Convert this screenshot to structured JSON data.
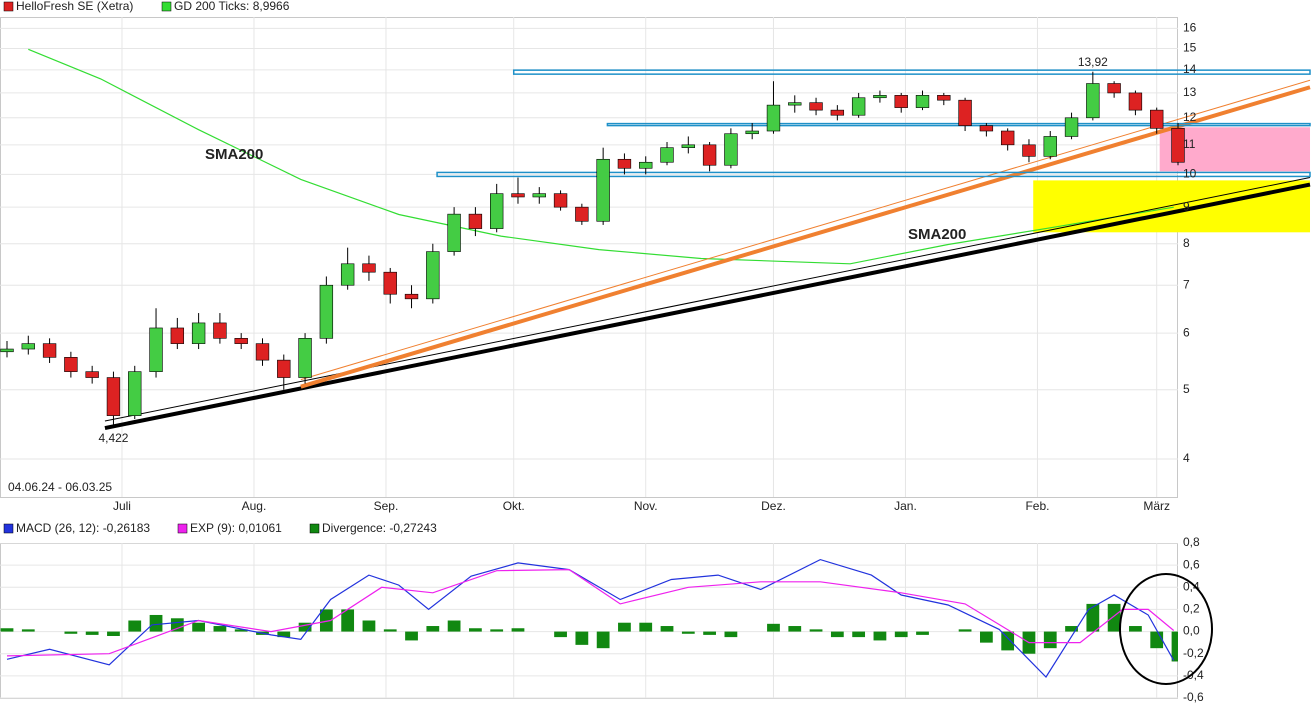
{
  "chart_data": [
    {
      "type": "candlestick",
      "name": "HelloFresh SE (Xetra)",
      "subtitle": "04.06.24 - 06.03.25",
      "up_color": "#44cc44",
      "down_color": "#dd2222",
      "log_scale": true,
      "grid": true,
      "xlim": [
        0,
        275
      ],
      "ylim": [
        3.54,
        16.6
      ],
      "xticks": [
        {
          "value": 27,
          "label": "Juli"
        },
        {
          "value": 58,
          "label": "Aug."
        },
        {
          "value": 89,
          "label": "Sep."
        },
        {
          "value": 119,
          "label": "Okt."
        },
        {
          "value": 150,
          "label": "Nov."
        },
        {
          "value": 180,
          "label": "Dez."
        },
        {
          "value": 211,
          "label": "Jan."
        },
        {
          "value": 242,
          "label": "Feb."
        },
        {
          "value": 270,
          "label": "März"
        }
      ],
      "yticks": [
        4,
        5,
        6,
        7,
        8,
        9,
        10,
        11,
        12,
        13,
        14,
        15,
        16
      ],
      "x": [
        0,
        5,
        10,
        15,
        20,
        25,
        30,
        35,
        40,
        45,
        50,
        55,
        60,
        65,
        70,
        75,
        80,
        85,
        90,
        95,
        100,
        105,
        110,
        115,
        120,
        125,
        130,
        135,
        140,
        145,
        150,
        155,
        160,
        165,
        170,
        175,
        180,
        185,
        190,
        195,
        200,
        205,
        210,
        215,
        220,
        225,
        230,
        235,
        240,
        245,
        250,
        255,
        260,
        265,
        270,
        275
      ],
      "open": [
        5.65,
        5.7,
        5.8,
        5.55,
        5.3,
        5.2,
        4.6,
        5.3,
        6.1,
        5.8,
        6.2,
        5.9,
        5.8,
        5.5,
        5.2,
        5.9,
        7.0,
        7.5,
        7.3,
        6.8,
        6.7,
        7.8,
        8.8,
        8.4,
        9.4,
        9.3,
        9.4,
        9.0,
        8.6,
        10.5,
        10.2,
        10.4,
        10.9,
        11.0,
        10.3,
        11.4,
        11.5,
        12.5,
        12.6,
        12.3,
        12.1,
        12.8,
        12.9,
        12.4,
        12.9,
        12.7,
        11.7,
        11.5,
        11.0,
        10.6,
        11.3,
        12.0,
        13.4,
        13.0,
        12.3,
        11.6
      ],
      "high": [
        5.85,
        5.95,
        5.9,
        5.65,
        5.4,
        5.3,
        5.4,
        6.5,
        6.3,
        6.4,
        6.4,
        6.0,
        5.9,
        5.6,
        6.0,
        7.2,
        7.9,
        7.7,
        7.4,
        7.0,
        8.0,
        9.0,
        9.0,
        9.7,
        9.9,
        9.6,
        9.5,
        9.1,
        10.9,
        10.7,
        10.6,
        11.1,
        11.3,
        11.1,
        11.6,
        11.8,
        13.5,
        12.9,
        12.8,
        12.5,
        13.0,
        13.1,
        13.0,
        13.1,
        13.0,
        12.8,
        11.8,
        11.6,
        11.2,
        11.5,
        12.2,
        13.92,
        13.5,
        13.1,
        12.4,
        11.8
      ],
      "low": [
        5.55,
        5.6,
        5.45,
        5.2,
        5.1,
        4.422,
        4.55,
        5.2,
        5.7,
        5.7,
        5.8,
        5.7,
        5.4,
        5.0,
        5.1,
        5.8,
        6.9,
        7.1,
        6.6,
        6.5,
        6.6,
        7.7,
        8.2,
        8.3,
        9.1,
        9.1,
        8.9,
        8.5,
        8.5,
        10.0,
        10.0,
        10.3,
        10.7,
        10.1,
        10.2,
        11.2,
        11.4,
        12.2,
        12.1,
        11.9,
        12.0,
        12.6,
        12.2,
        12.3,
        12.5,
        11.5,
        11.3,
        10.8,
        10.4,
        10.5,
        11.2,
        11.9,
        12.8,
        12.1,
        11.4,
        10.3
      ],
      "close": [
        5.7,
        5.8,
        5.55,
        5.3,
        5.2,
        4.6,
        5.3,
        6.1,
        5.8,
        6.2,
        5.9,
        5.8,
        5.5,
        5.2,
        5.9,
        7.0,
        7.5,
        7.3,
        6.8,
        6.7,
        7.8,
        8.8,
        8.4,
        9.4,
        9.3,
        9.4,
        9.0,
        8.6,
        10.5,
        10.2,
        10.4,
        10.9,
        11.0,
        10.3,
        11.4,
        11.5,
        12.5,
        12.6,
        12.3,
        12.1,
        12.8,
        12.9,
        12.4,
        12.9,
        12.7,
        11.7,
        11.5,
        11.0,
        10.6,
        11.3,
        12.0,
        13.4,
        13.0,
        12.3,
        11.6,
        10.4
      ],
      "extreme_labels": [
        {
          "value": 13.92,
          "label": "13,92"
        },
        {
          "value": 4.422,
          "label": "4,422"
        }
      ],
      "lines": [
        {
          "name": "GD 200 Ticks: 8,9966",
          "color": "#33dd33",
          "x": [
            5,
            22,
            45,
            69,
            92,
            116,
            139,
            163,
            198,
            221,
            245,
            274
          ],
          "values": [
            14.96,
            13.6,
            11.55,
            9.84,
            8.79,
            8.2,
            7.85,
            7.63,
            7.5,
            7.98,
            8.42,
            9.0
          ]
        }
      ],
      "annotations": [
        "SMA200",
        "SMA200"
      ],
      "annotation_color": "#22bb22",
      "zones": [
        {
          "x": [
            270.7,
            306
          ],
          "range": [
            10.1,
            11.64
          ],
          "color": "#ffaacc"
        },
        {
          "x": [
            241,
            306
          ],
          "range": [
            8.3,
            9.81
          ],
          "color": "#ffff00"
        }
      ],
      "levels": [
        {
          "x": [
            119,
            306
          ],
          "value": 13.9,
          "color": "#1e90c8",
          "width": 4
        },
        {
          "x": [
            141,
            306
          ],
          "value": 11.74,
          "color": "#1e90c8",
          "width": 2
        },
        {
          "x": [
            101,
            306
          ],
          "value": 10.0,
          "color": "#1e90c8",
          "width": 4
        }
      ],
      "trendlines": [
        {
          "x": [
            23,
            306
          ],
          "values": [
            4.42,
            9.68
          ],
          "color": "#000000",
          "width": 4
        },
        {
          "x": [
            69,
            306
          ],
          "values": [
            5.05,
            13.24
          ],
          "color": "#f08030",
          "width": 4
        }
      ]
    },
    {
      "type": "macd",
      "xlim": [
        0,
        275
      ],
      "ylim": [
        -0.6,
        0.8
      ],
      "grid": true,
      "yticks": [
        {
          "value": 0.8,
          "label": "0,8"
        },
        {
          "value": 0.6,
          "label": "0,6"
        },
        {
          "value": 0.4,
          "label": "0,4"
        },
        {
          "value": 0.2,
          "label": "0,2"
        },
        {
          "value": 0,
          "label": "0,0"
        },
        {
          "value": -0.2,
          "label": "-0,2"
        },
        {
          "value": -0.4,
          "label": "-0,4"
        },
        {
          "value": -0.6,
          "label": "-0,6"
        }
      ],
      "series": [
        {
          "name": "MACD (26, 12): -0,26183",
          "color": "#2233dd",
          "type": "line",
          "x": [
            0,
            10,
            24,
            34,
            45,
            62,
            69,
            76,
            85,
            92,
            99,
            109,
            120,
            132,
            144,
            156,
            167,
            177,
            191,
            203,
            210,
            221,
            233,
            244,
            254,
            260,
            268,
            274
          ],
          "values": [
            -0.25,
            -0.16,
            -0.3,
            0.06,
            0.1,
            -0.03,
            -0.07,
            0.29,
            0.51,
            0.42,
            0.2,
            0.5,
            0.62,
            0.56,
            0.29,
            0.47,
            0.51,
            0.38,
            0.65,
            0.51,
            0.33,
            0.24,
            0.02,
            -0.41,
            0.2,
            0.33,
            0.15,
            -0.26
          ]
        },
        {
          "name": "EXP (9): 0,01061",
          "color": "#ee22ee",
          "type": "line",
          "x": [
            0,
            24,
            45,
            62,
            76,
            88,
            100,
            115,
            132,
            144,
            160,
            177,
            191,
            210,
            225,
            240,
            252,
            262,
            268,
            274
          ],
          "values": [
            -0.22,
            -0.2,
            0.1,
            0.0,
            0.1,
            0.4,
            0.35,
            0.55,
            0.56,
            0.25,
            0.4,
            0.45,
            0.45,
            0.35,
            0.25,
            -0.1,
            -0.1,
            0.2,
            0.2,
            0.01
          ]
        },
        {
          "name": "Divergence: -0,27243",
          "color": "#118811",
          "type": "bar",
          "x": [
            0,
            5,
            10,
            15,
            20,
            25,
            30,
            35,
            40,
            45,
            50,
            55,
            60,
            65,
            70,
            75,
            80,
            85,
            90,
            95,
            100,
            105,
            110,
            115,
            120,
            125,
            130,
            135,
            140,
            145,
            150,
            155,
            160,
            165,
            170,
            175,
            180,
            185,
            190,
            195,
            200,
            205,
            210,
            215,
            220,
            225,
            230,
            235,
            240,
            245,
            250,
            255,
            260,
            265,
            270,
            275
          ],
          "values": [
            0.03,
            0.02,
            0.0,
            -0.02,
            -0.03,
            -0.04,
            0.1,
            0.15,
            0.12,
            0.08,
            0.05,
            0.02,
            -0.03,
            -0.05,
            0.08,
            0.2,
            0.2,
            0.1,
            0.02,
            -0.08,
            0.05,
            0.1,
            0.03,
            0.02,
            0.03,
            0.0,
            -0.05,
            -0.12,
            -0.15,
            0.08,
            0.08,
            0.05,
            -0.02,
            -0.03,
            -0.05,
            0.0,
            0.07,
            0.05,
            0.02,
            -0.05,
            -0.05,
            -0.08,
            -0.05,
            -0.03,
            0.0,
            0.02,
            -0.1,
            -0.17,
            -0.2,
            -0.15,
            0.05,
            0.25,
            0.25,
            0.05,
            -0.15,
            -0.27
          ]
        }
      ]
    }
  ]
}
